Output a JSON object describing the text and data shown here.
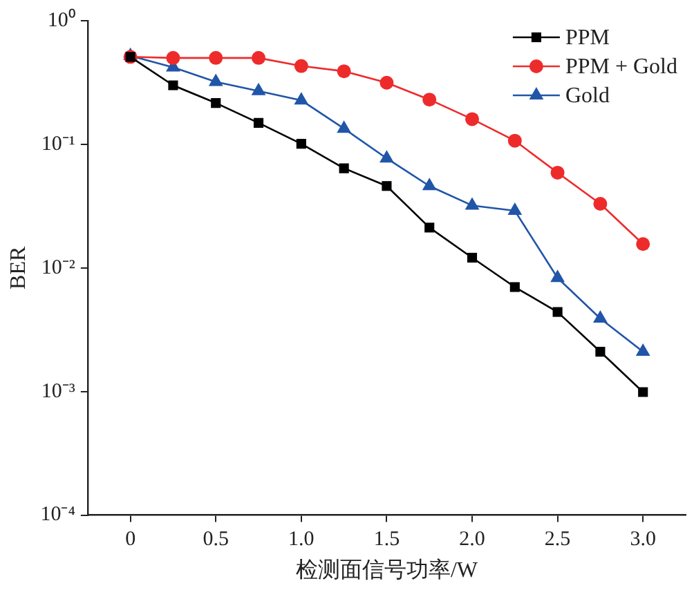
{
  "chart_data": {
    "type": "line",
    "xlabel": "检测面信号功率/W",
    "ylabel": "BER",
    "log": "y",
    "grid": false,
    "legend": "top right",
    "line_style": "solid",
    "x": [
      0,
      0.25,
      0.5,
      0.75,
      1.0,
      1.25,
      1.5,
      1.75,
      2.0,
      2.25,
      2.5,
      2.75,
      3.0
    ],
    "xlim": [
      -0.25,
      3.25
    ],
    "xticks": [
      {
        "value": 0,
        "label": "0"
      },
      {
        "value": 0.5,
        "label": "0.5"
      },
      {
        "value": 1,
        "label": "1.0"
      },
      {
        "value": 1.5,
        "label": "1.5"
      },
      {
        "value": 2,
        "label": "2.0"
      },
      {
        "value": 2.5,
        "label": "2.5"
      },
      {
        "value": 3,
        "label": "3.0"
      }
    ],
    "ylim": [
      0.0001,
      1
    ],
    "yticks": [
      {
        "value": 1,
        "label": "10⁰"
      },
      {
        "value": 0.1,
        "label": "10⁻¹"
      },
      {
        "value": 0.01,
        "label": "10⁻²"
      },
      {
        "value": 0.001,
        "label": "10⁻³"
      },
      {
        "value": 0.0001,
        "label": "10⁻⁴"
      }
    ],
    "series": [
      {
        "name": "PPM",
        "color": "#000000",
        "marker": "square",
        "values": [
          0.51,
          0.3,
          0.216,
          0.149,
          0.101,
          0.064,
          0.046,
          0.0212,
          0.0121,
          0.007,
          0.0044,
          0.0021,
          0.00099
        ]
      },
      {
        "name": "PPM + Gold",
        "color": "#ee2b2b",
        "marker": "circle",
        "values": [
          0.51,
          0.5,
          0.5,
          0.5,
          0.43,
          0.39,
          0.315,
          0.23,
          0.16,
          0.107,
          0.059,
          0.033,
          0.0156
        ]
      },
      {
        "name": "Gold",
        "color": "#2155a8",
        "marker": "triangle",
        "values": [
          0.52,
          0.42,
          0.32,
          0.27,
          0.227,
          0.134,
          0.077,
          0.046,
          0.032,
          0.029,
          0.0083,
          0.0039,
          0.0021
        ]
      }
    ]
  }
}
